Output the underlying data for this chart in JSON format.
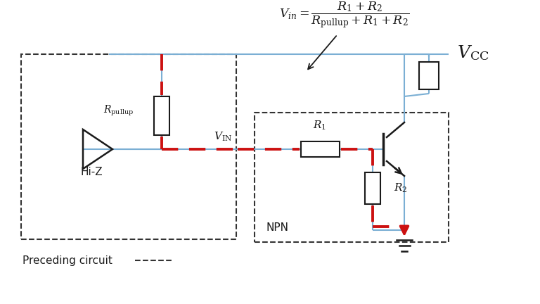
{
  "bg_color": "#ffffff",
  "figsize": [
    7.68,
    4.32
  ],
  "dpi": 100,
  "blue": "#7bafd4",
  "red": "#cc1111",
  "black": "#1a1a1a",
  "dash_col": "#333333",
  "formula": "$V_{in} = \\dfrac{R_1 + R_2}{R_{\\mathrm{pullup}} + R_1 + R_2}$",
  "vcc_label": "$V_{\\mathrm{CC}}$",
  "vin_label": "$V_{\\mathrm{IN}}$",
  "r1_label": "$R_1$",
  "r2_label": "$R_2$",
  "rpullup_label": "$R_{\\mathrm{pullup}}$",
  "hiz_label": "Hi-Z",
  "npn_label": "NPN",
  "preceding_label": "Preceding circuit"
}
